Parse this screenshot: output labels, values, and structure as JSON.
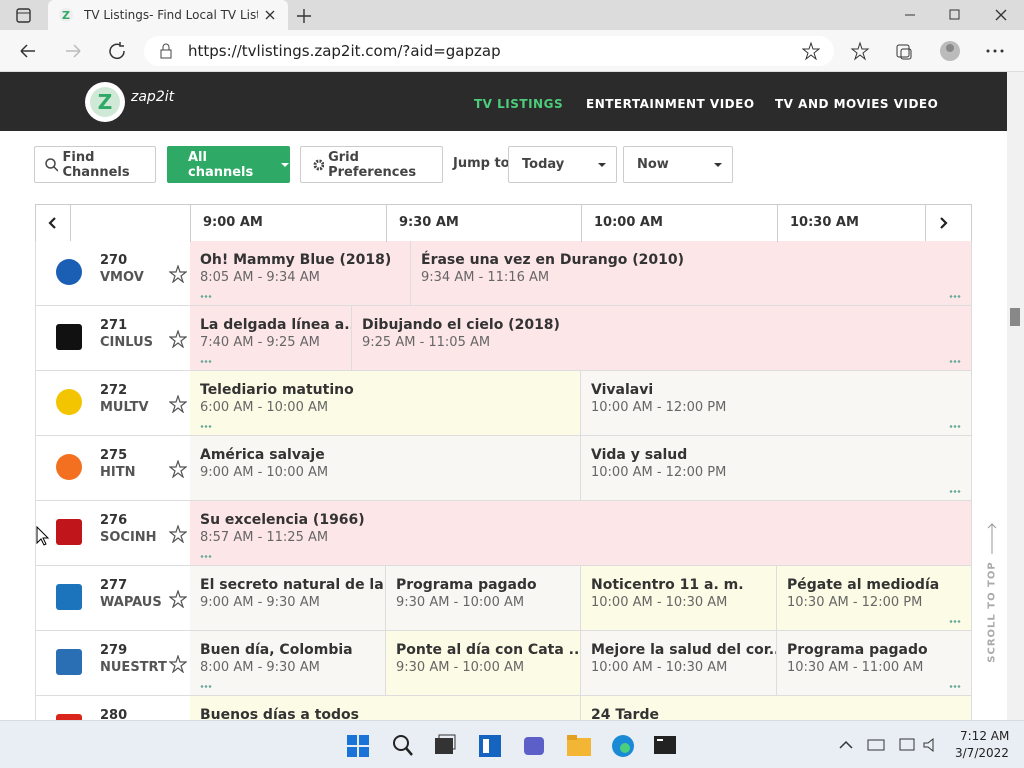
{
  "browser": {
    "tab_title": "TV Listings- Find Local TV Listing",
    "url": "https://tvlistings.zap2it.com/?aid=gapzap"
  },
  "site": {
    "logo": "zap2it",
    "nav": [
      "TV LISTINGS",
      "ENTERTAINMENT VIDEO",
      "TV AND MOVIES VIDEO"
    ]
  },
  "toolbar": {
    "find_channels": "Find Channels",
    "channels_filter": "All channels",
    "grid_preferences": "Grid Preferences",
    "jump_to": "Jump to",
    "day": "Today",
    "time": "Now"
  },
  "grid": {
    "time_slots": [
      "9:00 AM",
      "9:30 AM",
      "10:00 AM",
      "10:30 AM"
    ],
    "rows": [
      {
        "number": "270",
        "call_sign": "VMOV",
        "programs": [
          {
            "title": "Oh! Mammy Blue (2018)",
            "time": "8:05 AM - 9:34 AM"
          },
          {
            "title": "Érase una vez en Durango (2010)",
            "time": "9:34 AM - 11:16 AM"
          }
        ]
      },
      {
        "number": "271",
        "call_sign": "CINLUS",
        "programs": [
          {
            "title": "La delgada línea a...",
            "time": "7:40 AM - 9:25 AM"
          },
          {
            "title": "Dibujando el cielo (2018)",
            "time": "9:25 AM - 11:05 AM"
          }
        ]
      },
      {
        "number": "272",
        "call_sign": "MULTV",
        "programs": [
          {
            "title": "Telediario matutino",
            "time": "6:00 AM - 10:00 AM"
          },
          {
            "title": "Vivalavi",
            "time": "10:00 AM - 12:00 PM"
          }
        ]
      },
      {
        "number": "275",
        "call_sign": "HITN",
        "programs": [
          {
            "title": "América salvaje",
            "time": "9:00 AM - 10:00 AM"
          },
          {
            "title": "Vida y salud",
            "time": "10:00 AM - 12:00 PM"
          }
        ]
      },
      {
        "number": "276",
        "call_sign": "SOCINH",
        "programs": [
          {
            "title": "Su excelencia (1966)",
            "time": "8:57 AM - 11:25 AM"
          }
        ]
      },
      {
        "number": "277",
        "call_sign": "WAPAUS",
        "programs": [
          {
            "title": "El secreto natural de la...",
            "time": "9:00 AM - 9:30 AM"
          },
          {
            "title": "Programa pagado",
            "time": "9:30 AM - 10:00 AM"
          },
          {
            "title": "Noticentro 11 a. m.",
            "time": "10:00 AM - 10:30 AM"
          },
          {
            "title": "Pégate al mediodía",
            "time": "10:30 AM - 12:00 PM"
          }
        ]
      },
      {
        "number": "279",
        "call_sign": "NUESTRT",
        "programs": [
          {
            "title": "Buen día, Colombia",
            "time": "8:00 AM - 9:30 AM"
          },
          {
            "title": "Ponte al día con Cata ...",
            "time": "9:30 AM - 10:00 AM"
          },
          {
            "title": "Mejore la salud del cor...",
            "time": "10:00 AM - 10:30 AM"
          },
          {
            "title": "Programa pagado",
            "time": "10:30 AM - 11:00 AM"
          }
        ]
      },
      {
        "number": "280",
        "programs": [
          {
            "title": "Buenos días a todos"
          },
          {
            "title": "24 Tarde"
          }
        ]
      }
    ]
  },
  "scroll_to_top": "SCROLL TO TOP",
  "taskbar": {
    "time": "7:12 AM",
    "date": "3/7/2022"
  }
}
